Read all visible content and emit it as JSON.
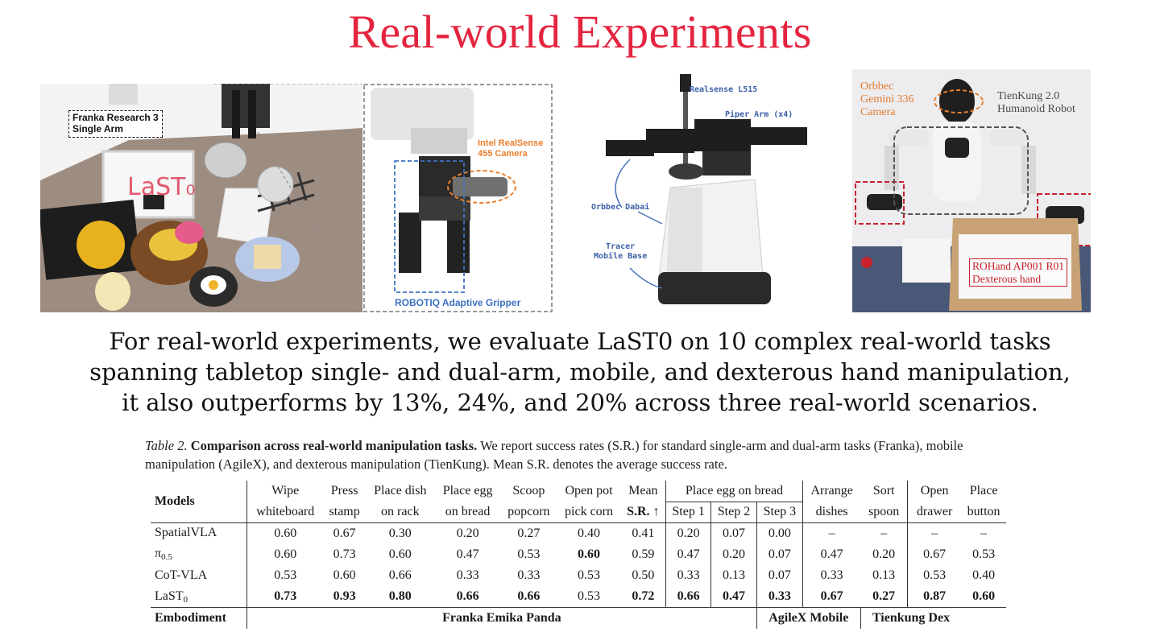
{
  "slide": {
    "title": "Real-world Experiments"
  },
  "photo1": {
    "label_arm": [
      "Franka Research 3",
      "Single Arm"
    ],
    "label_camera": [
      "Intel RealSense",
      "455 Camera"
    ],
    "label_gripper": "ROBOTIQ Adaptive Gripper",
    "whiteboard_text": "LaST₀"
  },
  "photo2": {
    "label_camera": "Realsense L515",
    "label_arm": "Piper Arm (x4)",
    "label_depth": "Orbbec Dabai",
    "label_base": [
      "Tracer",
      "Mobile Base"
    ]
  },
  "photo3": {
    "label_camera": [
      "Orbbec",
      "Gemini 336",
      "Camera"
    ],
    "label_robot": [
      "TienKung 2.0",
      "Humanoid Robot"
    ],
    "label_hand": [
      "ROHand AP001 R01",
      "Dexterous hand"
    ]
  },
  "summary": {
    "line1": "For real-world experiments, we evaluate LaST0 on 10 complex real-world tasks",
    "line2": "spanning tabletop single- and dual-arm, mobile, and dexterous hand manipulation,",
    "line3": "it also outperforms by 13%, 24%, and 20% across three real-world scenarios."
  },
  "caption": {
    "table_no": "Table 2.",
    "bold": "Comparison across real-world manipulation tasks.",
    "text": " We report success rates (S.R.) for standard single-arm and dual-arm tasks (Franka), mobile manipulation (AgileX), and dexterous manipulation (TienKung). Mean S.R. denotes the average success rate."
  },
  "table": {
    "models_header": "Models",
    "place_egg_group": "Place egg on bread",
    "headers_top": [
      "Wipe",
      "Press",
      "Place dish",
      "Place egg",
      "Scoop",
      "Open pot",
      "Mean"
    ],
    "headers_bottom": [
      "whiteboard",
      "stamp",
      "on rack",
      "on bread",
      "popcorn",
      "pick corn",
      "S.R. ↑"
    ],
    "step_headers": [
      "Step 1",
      "Step 2",
      "Step 3"
    ],
    "agilex_headers_top": [
      "Arrange",
      "Sort"
    ],
    "agilex_headers_bottom": [
      "dishes",
      "spoon"
    ],
    "tienkung_headers_top": [
      "Open",
      "Place"
    ],
    "tienkung_headers_bottom": [
      "drawer",
      "button"
    ],
    "rows": [
      {
        "model": "SpatialVLA",
        "sub": "",
        "vals": [
          "0.60",
          "0.67",
          "0.30",
          "0.20",
          "0.27",
          "0.40",
          "0.41",
          "0.20",
          "0.07",
          "0.00",
          "–",
          "–",
          "–",
          "–"
        ]
      },
      {
        "model": "π",
        "sub": "0.5",
        "vals": [
          "0.60",
          "0.73",
          "0.60",
          "0.47",
          "0.53",
          "0.60",
          "0.59",
          "0.47",
          "0.20",
          "0.07",
          "0.47",
          "0.20",
          "0.67",
          "0.53"
        ]
      },
      {
        "model": "CoT-VLA",
        "sub": "",
        "vals": [
          "0.53",
          "0.60",
          "0.66",
          "0.33",
          "0.33",
          "0.53",
          "0.50",
          "0.33",
          "0.13",
          "0.07",
          "0.33",
          "0.13",
          "0.53",
          "0.40"
        ]
      },
      {
        "model": "LaST",
        "sub": "0",
        "vals": [
          "0.73",
          "0.93",
          "0.80",
          "0.66",
          "0.66",
          "0.53",
          "0.72",
          "0.66",
          "0.47",
          "0.33",
          "0.67",
          "0.27",
          "0.87",
          "0.60"
        ]
      }
    ],
    "embodiment_label": "Embodiment",
    "embodiment_franka": "Franka Emika Panda",
    "embodiment_agilex": "AgileX Mobile",
    "embodiment_tienkung": "Tienkung Dex"
  }
}
